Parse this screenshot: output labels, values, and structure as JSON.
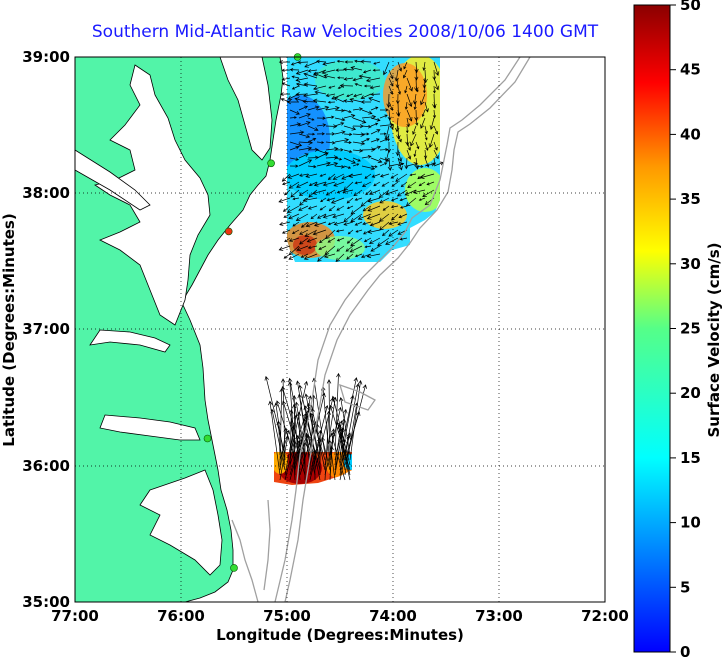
{
  "title": "Southern Mid-Atlantic Raw Velocities 2008/10/06 1400 GMT",
  "xlabel": "Longitude (Degrees:Minutes)",
  "ylabel": "Latitude (Degrees:Minutes)",
  "x_ticks": [
    "77:00",
    "76:00",
    "75:00",
    "74:00",
    "73:00",
    "72:00"
  ],
  "y_ticks": [
    "39:00",
    "38:00",
    "37:00",
    "36:00",
    "35:00"
  ],
  "colorbar": {
    "label": "Surface Velocity (cm/s)",
    "ticks": [
      "0",
      "5",
      "10",
      "15",
      "20",
      "25",
      "30",
      "35",
      "40",
      "45",
      "50"
    ],
    "range": [
      0,
      50
    ],
    "colormap": "jet"
  },
  "colors": {
    "land": "#52f4a8",
    "water": "#ffffff",
    "bathymetry": "#a0a0a0",
    "title": "#1a1aff"
  },
  "stations": [
    {
      "lon": -74.9,
      "lat": 39.0,
      "color": "#33dd33"
    },
    {
      "lon": -75.15,
      "lat": 38.22,
      "color": "#33dd33"
    },
    {
      "lon": -75.55,
      "lat": 37.72,
      "color": "#ee3311"
    },
    {
      "lon": -75.75,
      "lat": 36.2,
      "color": "#33dd33"
    },
    {
      "lon": -75.5,
      "lat": 35.25,
      "color": "#33dd33"
    }
  ],
  "chart_data": {
    "type": "heatmap",
    "xlim": [
      -77,
      -72
    ],
    "ylim": [
      35,
      39
    ],
    "regions": [
      {
        "name": "north",
        "lon": [
          -75.0,
          -73.6
        ],
        "lat": [
          37.5,
          39.0
        ]
      },
      {
        "name": "south",
        "lon": [
          -75.1,
          -74.35
        ],
        "lat": [
          35.95,
          36.25
        ]
      }
    ]
  }
}
